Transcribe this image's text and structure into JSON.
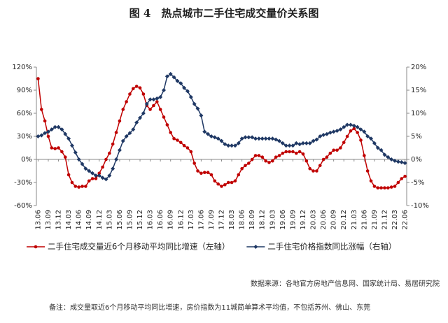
{
  "chart_data": {
    "type": "line",
    "title": "图 4　热点城市二手住宅成交量价关系图",
    "categories": [
      "13.06",
      null,
      null,
      "13.09",
      null,
      null,
      "13.12",
      null,
      null,
      "14.03",
      null,
      null,
      "14.06",
      null,
      null,
      "14.09",
      null,
      null,
      "14.12",
      null,
      null,
      "15.03",
      null,
      null,
      "15.06",
      null,
      null,
      "15.09",
      null,
      null,
      "15.12",
      null,
      null,
      "16.03",
      null,
      null,
      "16.06",
      null,
      null,
      "16.09",
      null,
      null,
      "16.12",
      null,
      null,
      "17.03",
      null,
      null,
      "17.06",
      null,
      null,
      "17.09",
      null,
      null,
      "17.12",
      null,
      null,
      "18.03",
      null,
      null,
      "18.06",
      null,
      null,
      "18.09",
      null,
      null,
      "18.12",
      null,
      null,
      "19.03",
      null,
      null,
      "19.06",
      null,
      null,
      "19.09",
      null,
      null,
      "19.12",
      null,
      null,
      "20.03",
      null,
      null,
      "20.06",
      null,
      null,
      "20.09",
      null,
      null,
      "20.12",
      null,
      null,
      "21.03",
      null,
      null,
      "21.06",
      null,
      null,
      "21.09",
      null,
      null,
      "21.12",
      null,
      null,
      "22.03",
      null,
      null,
      "22.06"
    ],
    "series": [
      {
        "name": "二手住宅成交量近6个月移动平均同比增速（左轴）",
        "color": "#c00000",
        "marker": "circle",
        "axis": "y",
        "values": [
          105,
          65,
          50,
          30,
          15,
          14,
          15,
          10,
          3,
          -20,
          -30,
          -35,
          -36,
          -35,
          -35,
          -28,
          -25,
          -25,
          -18,
          -10,
          0,
          8,
          20,
          35,
          50,
          65,
          75,
          85,
          92,
          95,
          93,
          85,
          70,
          65,
          70,
          75,
          65,
          55,
          45,
          35,
          27,
          25,
          22,
          18,
          15,
          10,
          -5,
          -15,
          -18,
          -17,
          -17,
          -20,
          -28,
          -32,
          -35,
          -33,
          -30,
          -30,
          -28,
          -20,
          -12,
          -8,
          -5,
          0,
          5,
          5,
          3,
          -2,
          -4,
          -2,
          3,
          5,
          8,
          10,
          10,
          10,
          8,
          10,
          7,
          -2,
          -12,
          -15,
          -15,
          -8,
          0,
          3,
          8,
          12,
          12,
          15,
          22,
          30,
          37,
          40,
          35,
          25,
          5,
          -15,
          -28,
          -35,
          -37,
          -37,
          -37,
          -37,
          -36,
          -35,
          -30,
          -25,
          -22
        ]
      },
      {
        "name": "二手住宅价格指数同比涨幅（右轴）",
        "color": "#1f3864",
        "marker": "diamond",
        "axis": "y2",
        "values": [
          5,
          5.2,
          5.7,
          6,
          6.5,
          7,
          7,
          6.5,
          5.5,
          4.5,
          3,
          1.5,
          0,
          -1,
          -2,
          -2.5,
          -3,
          -3.5,
          -3.5,
          -4,
          -4.3,
          -3.5,
          -2,
          0,
          2,
          4,
          5,
          5.7,
          6.5,
          8,
          9,
          10,
          12,
          13,
          13,
          13.2,
          13.5,
          15,
          18,
          18.5,
          17.8,
          17,
          16.5,
          15.5,
          14.8,
          13.5,
          12,
          11,
          9.5,
          6,
          5.5,
          5,
          4.8,
          4.5,
          4,
          3.3,
          3,
          3,
          3,
          3.5,
          4.5,
          4.8,
          4.8,
          4.8,
          4.5,
          4.5,
          4.5,
          4.5,
          4.5,
          4.5,
          4.3,
          4,
          3.5,
          3,
          3,
          3,
          3.5,
          3.3,
          3.5,
          3.5,
          3.5,
          4,
          4.3,
          5,
          5.3,
          5.5,
          5.8,
          6,
          6.2,
          6.5,
          7,
          7.5,
          7.5,
          7.3,
          7,
          6.5,
          6,
          5,
          4.5,
          3.5,
          2.5,
          2,
          1,
          0.5,
          0,
          -0.3,
          -0.5,
          -0.6,
          -0.8
        ]
      }
    ],
    "ylim": [
      -60,
      120
    ],
    "yticks": [
      {
        "value": -60,
        "label": "-60%"
      },
      {
        "value": -30,
        "label": "-30%"
      },
      {
        "value": 0,
        "label": "0%"
      },
      {
        "value": 30,
        "label": "30%"
      },
      {
        "value": 60,
        "label": "60%"
      },
      {
        "value": 90,
        "label": "90%"
      },
      {
        "value": 120,
        "label": "120%"
      }
    ],
    "y2lim": [
      -10,
      20
    ],
    "y2ticks": [
      {
        "value": -10,
        "label": "-10%"
      },
      {
        "value": -5,
        "label": "-5%"
      },
      {
        "value": 0,
        "label": "0%"
      },
      {
        "value": 5,
        "label": "5%"
      },
      {
        "value": 10,
        "label": "10%"
      },
      {
        "value": 15,
        "label": "15%"
      },
      {
        "value": 20,
        "label": "20%"
      }
    ],
    "grid": false,
    "legend": "bottom",
    "source": "数据来源：各地官方房地产信息网、国家统计局、易居研究院",
    "note": "备注：成交量取近6个月移动平均同比增速，房价指数为11城简单算术平均值，不包括苏州、佛山、东莞"
  }
}
